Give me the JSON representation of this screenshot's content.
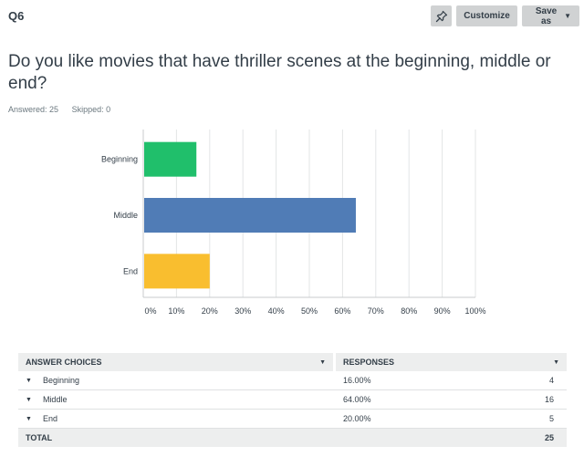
{
  "question": {
    "number": "Q6",
    "title": "Do you like movies that have thriller scenes at the beginning, middle or end?",
    "answered_label": "Answered: 25",
    "skipped_label": "Skipped: 0"
  },
  "toolbar": {
    "pin_icon": "pin-icon",
    "customize_label": "Customize",
    "save_as_label": "Save as"
  },
  "chart_data": {
    "type": "bar",
    "orientation": "horizontal",
    "categories": [
      "Beginning",
      "Middle",
      "End"
    ],
    "values": [
      16,
      64,
      20
    ],
    "colors": [
      "#20bf6b",
      "#507cb6",
      "#f9be2f"
    ],
    "xlim": [
      0,
      100
    ],
    "x_ticks": [
      "0%",
      "10%",
      "20%",
      "30%",
      "40%",
      "50%",
      "60%",
      "70%",
      "80%",
      "90%",
      "100%"
    ],
    "grid": true
  },
  "table": {
    "header": {
      "choices": "ANSWER CHOICES",
      "responses": "RESPONSES"
    },
    "rows": [
      {
        "choice": "Beginning",
        "percent": "16.00%",
        "count": "4"
      },
      {
        "choice": "Middle",
        "percent": "64.00%",
        "count": "16"
      },
      {
        "choice": "End",
        "percent": "20.00%",
        "count": "5"
      }
    ],
    "total_label": "TOTAL",
    "total_count": "25"
  }
}
